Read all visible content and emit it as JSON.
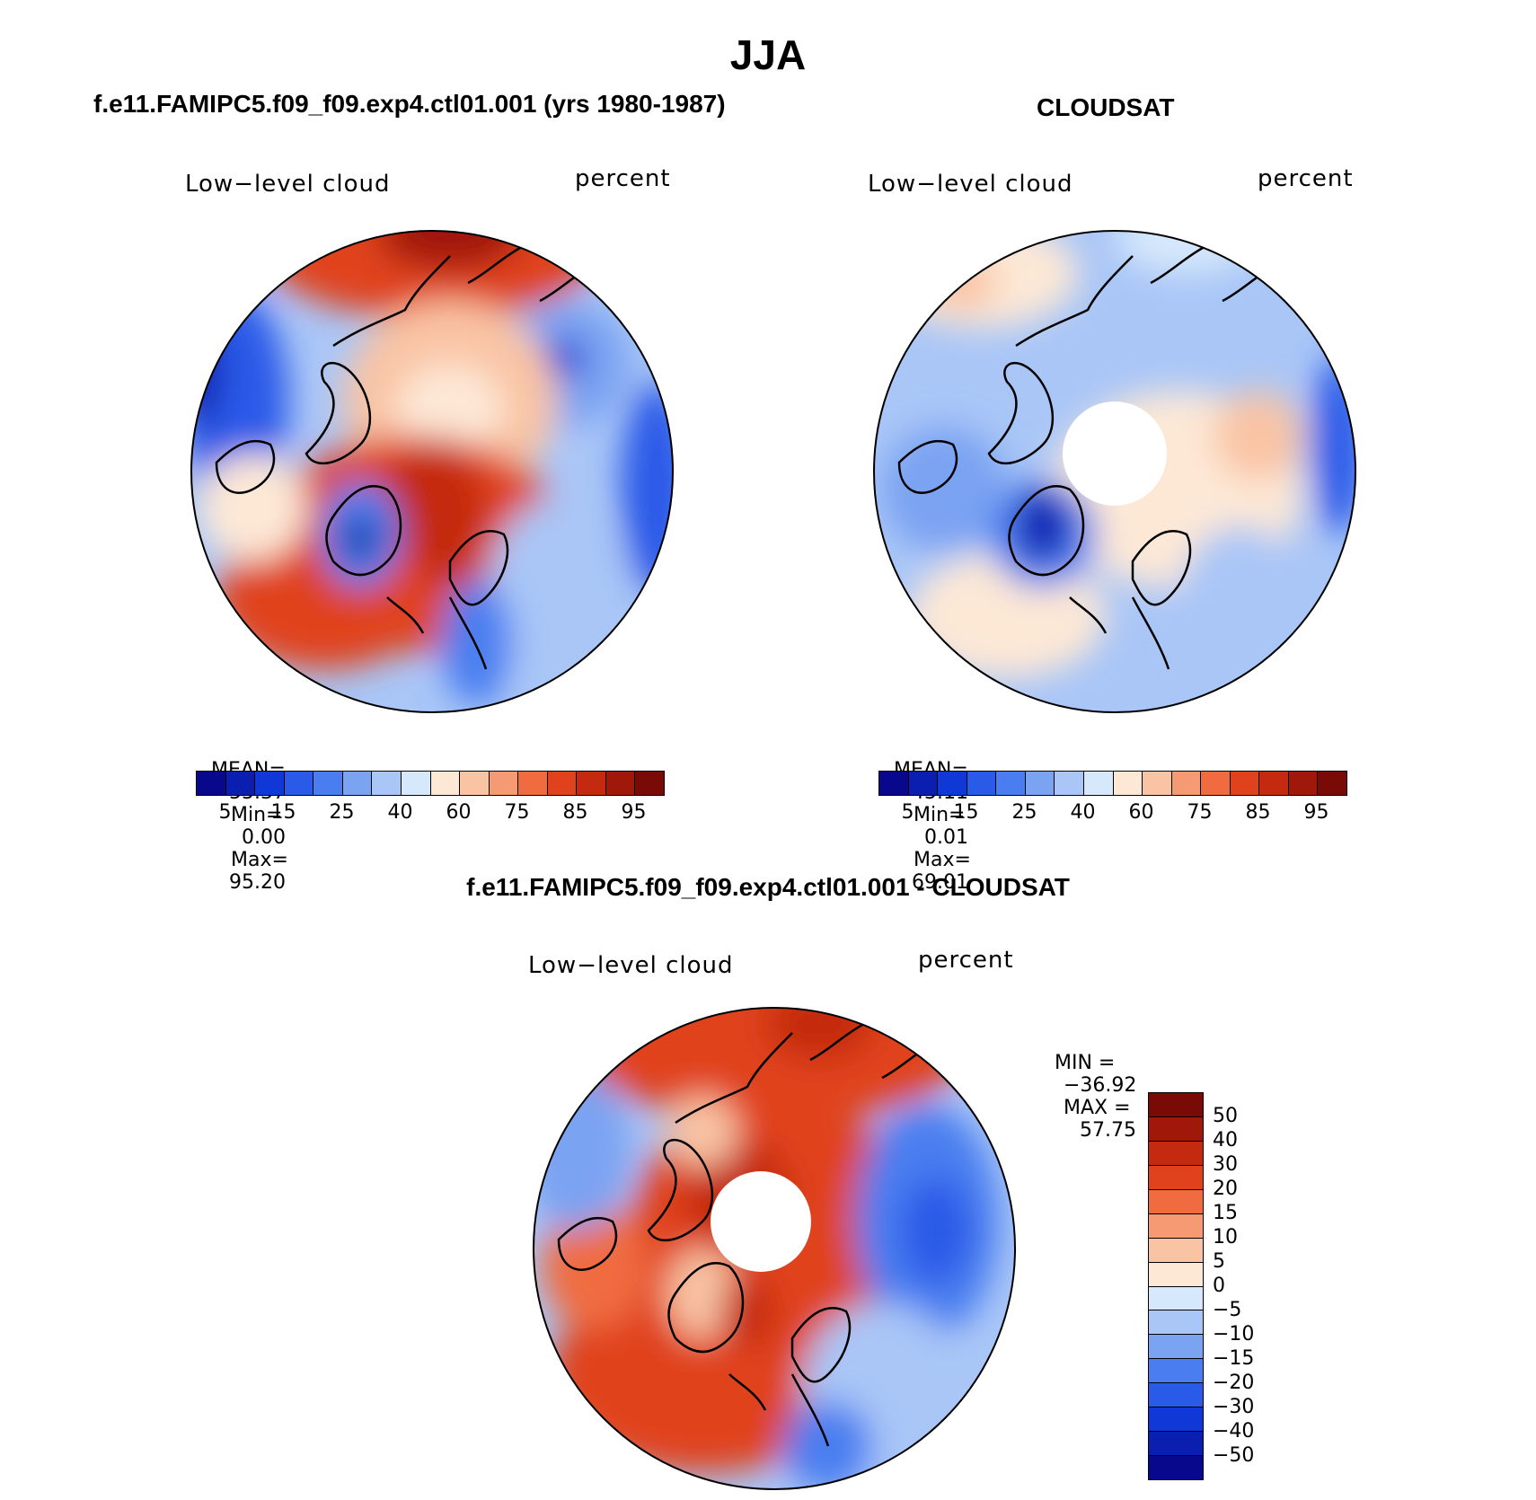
{
  "page_title": "JJA",
  "panels": [
    {
      "title": "f.e11.FAMIPC5.f09_f09.exp4.ctl01.001 (yrs 1980-1987)",
      "variable": "Low−level cloud",
      "units": "percent",
      "stats": {
        "mean_label": "MEAN=",
        "mean": "55.37",
        "min_label": "Min=",
        "min": "0.00",
        "max_label": "Max=",
        "max": "95.20"
      },
      "colorbar_ticks": [
        "5",
        "15",
        "25",
        "40",
        "60",
        "75",
        "85",
        "95"
      ]
    },
    {
      "title": "CLOUDSAT",
      "variable": "Low−level cloud",
      "units": "percent",
      "stats": {
        "mean_label": "MEAN=",
        "mean": "45.11",
        "min_label": "Min=",
        "min": "0.01",
        "max_label": "Max=",
        "max": "69.01"
      },
      "colorbar_ticks": [
        "5",
        "15",
        "25",
        "40",
        "60",
        "75",
        "85",
        "95"
      ]
    },
    {
      "title": "f.e11.FAMIPC5.f09_f09.exp4.ctl01.001 - CLOUDSAT",
      "variable": "Low−level cloud",
      "units": "percent",
      "stats": {
        "min_label": "MIN =",
        "min": "−36.92",
        "max_label": "MAX =",
        "max": "57.75"
      },
      "colorbar_ticks": [
        "50",
        "40",
        "30",
        "20",
        "15",
        "10",
        "5",
        "0",
        "−5",
        "−10",
        "−15",
        "−20",
        "−30",
        "−40",
        "−50"
      ]
    }
  ],
  "colors": {
    "abs_scale": [
      "#08088c",
      "#0a1fb0",
      "#1038d6",
      "#2a5ae8",
      "#4a7ef0",
      "#7aa3f2",
      "#a9c6f7",
      "#d6e8fb",
      "#fde8d6",
      "#f9c4a4",
      "#f59a72",
      "#f06c40",
      "#e0421e",
      "#c42a10",
      "#a0180a",
      "#7a0a06"
    ],
    "diff_scale": [
      "#7a0a06",
      "#a0180a",
      "#c42a10",
      "#e0421e",
      "#f06c40",
      "#f59a72",
      "#f9c4a4",
      "#fde8d6",
      "#d6e8fb",
      "#a9c6f7",
      "#7aa3f2",
      "#4a7ef0",
      "#2a5ae8",
      "#1038d6",
      "#0a1fb0",
      "#08088c"
    ]
  }
}
